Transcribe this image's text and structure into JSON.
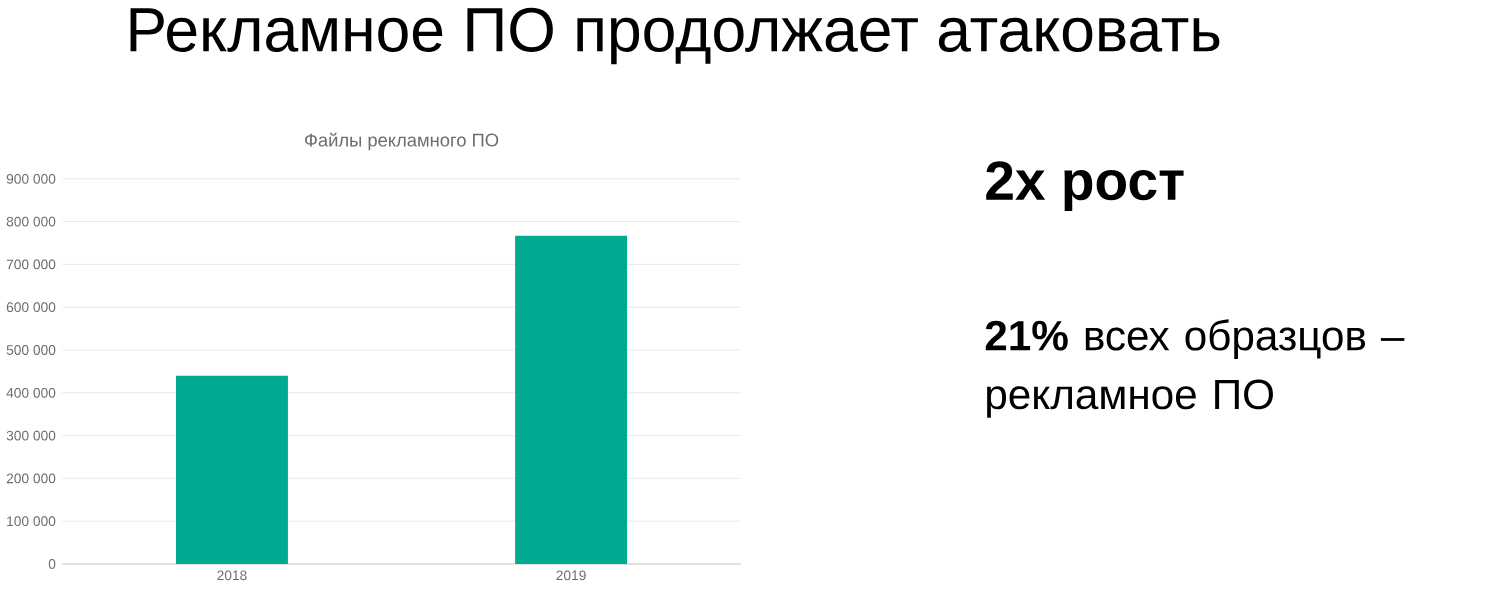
{
  "chart_data": {
    "type": "bar",
    "title": "Файлы рекламного ПО",
    "categories": [
      "2018",
      "2019"
    ],
    "values": [
      440000,
      767000
    ],
    "color": "#00a98f",
    "ylim": [
      0,
      900000
    ],
    "yticks": [
      {
        "value": 0,
        "label": "0"
      },
      {
        "value": 100000,
        "label": "100 000"
      },
      {
        "value": 200000,
        "label": "200 000"
      },
      {
        "value": 300000,
        "label": "300 000"
      },
      {
        "value": 400000,
        "label": "400 000"
      },
      {
        "value": 500000,
        "label": "500 000"
      },
      {
        "value": 600000,
        "label": "600 000"
      },
      {
        "value": 700000,
        "label": "700 000"
      },
      {
        "value": 800000,
        "label": "800 000"
      },
      {
        "value": 900000,
        "label": "900 000"
      }
    ],
    "grid": "y",
    "annotations": [
      "Рекламное ПО продолжает атаковать",
      "2x рост",
      "**21%** всех образцов – рекламное ПО"
    ]
  }
}
